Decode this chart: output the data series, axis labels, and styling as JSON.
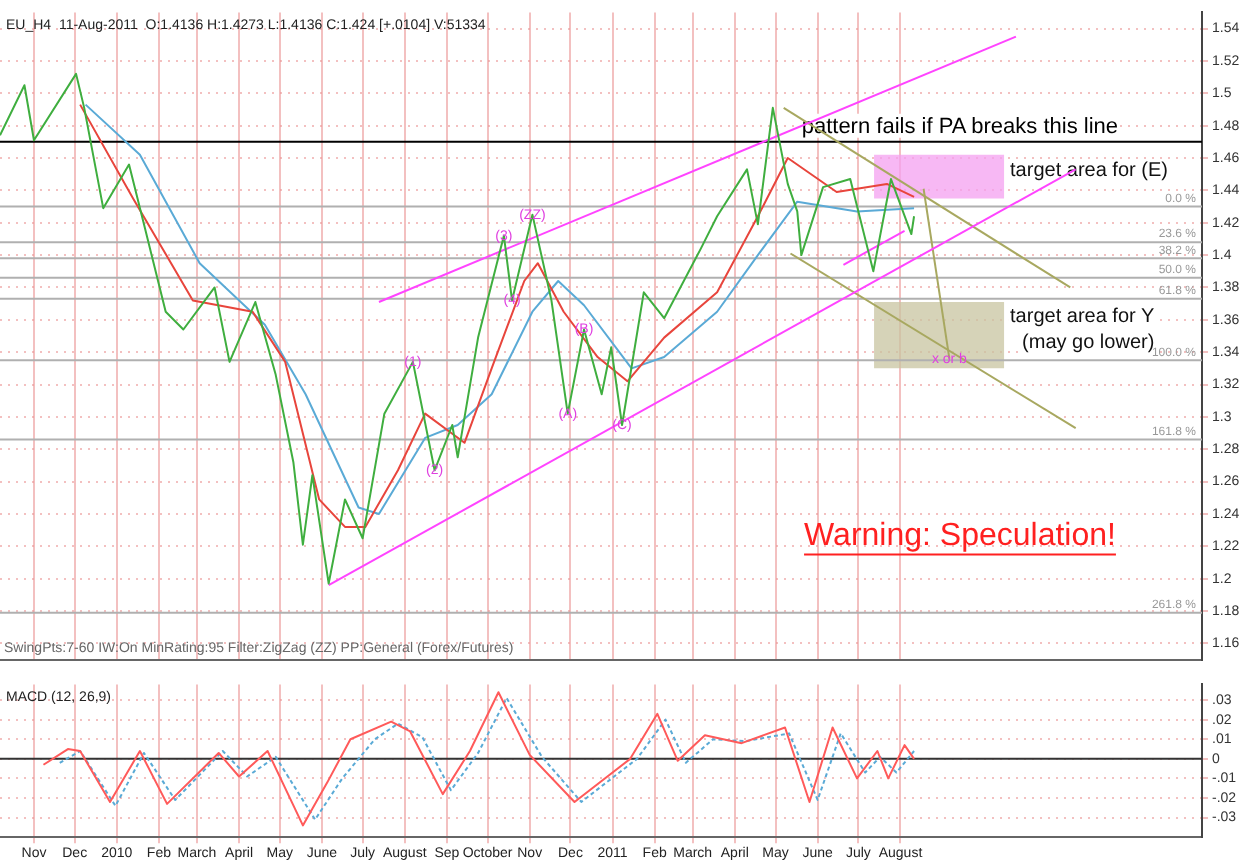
{
  "chart_data": [
    {
      "type": "line",
      "title": "EU_H4  11-Aug-2011  O:1.4136 H:1.4273 L:1.4136 C:1.424 [+.0104] V:51334",
      "xlim": [
        "2009-10-07",
        "2012-03-10"
      ],
      "xticks": [
        {
          "value": "2009-11-01",
          "label": null
        },
        {
          "value": "2009-12-01",
          "label": null
        },
        {
          "value": "2010-01-01",
          "label": null
        },
        {
          "value": "2010-02-01",
          "label": null
        },
        {
          "value": "2010-03-01",
          "label": null
        },
        {
          "value": "2010-04-01",
          "label": null
        },
        {
          "value": "2010-05-01",
          "label": null
        },
        {
          "value": "2010-06-01",
          "label": null
        },
        {
          "value": "2010-07-01",
          "label": null
        },
        {
          "value": "2010-08-01",
          "label": null
        },
        {
          "value": "2010-09-01",
          "label": null
        },
        {
          "value": "2010-10-01",
          "label": null
        },
        {
          "value": "2010-11-01",
          "label": null
        },
        {
          "value": "2010-12-01",
          "label": null
        },
        {
          "value": "2011-01-01",
          "label": null
        },
        {
          "value": "2011-02-01",
          "label": null
        },
        {
          "value": "2011-03-01",
          "label": null
        },
        {
          "value": "2011-04-01",
          "label": null
        },
        {
          "value": "2011-05-01",
          "label": null
        },
        {
          "value": "2011-06-01",
          "label": null
        },
        {
          "value": "2011-07-01",
          "label": null
        },
        {
          "value": "2011-08-01",
          "label": null
        }
      ],
      "ylim": [
        1.15,
        1.55
      ],
      "yticks": [
        1.16,
        1.18,
        1.2,
        1.22,
        1.24,
        1.26,
        1.28,
        1.3,
        1.32,
        1.34,
        1.36,
        1.38,
        1.4,
        1.42,
        1.44,
        1.46,
        1.48,
        1.5,
        1.52,
        1.54
      ],
      "tick_labels": "y",
      "grid": true,
      "legend": false,
      "series": [
        {
          "color": "#3fae3f",
          "x": [
            "2009-10-07",
            "2009-10-25",
            "2009-11-01",
            "2009-12-02",
            "2009-12-08",
            "2009-12-22",
            "2010-01-10",
            "2010-01-21",
            "2010-02-06",
            "2010-02-19",
            "2010-03-14",
            "2010-03-25",
            "2010-04-13",
            "2010-04-28",
            "2010-05-11",
            "2010-05-18",
            "2010-05-25",
            "2010-06-06",
            "2010-06-18",
            "2010-07-01",
            "2010-07-17",
            "2010-08-07",
            "2010-08-23",
            "2010-09-05",
            "2010-09-09",
            "2010-09-24",
            "2010-10-13",
            "2010-10-19",
            "2010-11-03",
            "2010-11-17",
            "2010-11-29",
            "2010-12-11",
            "2010-12-24",
            "2010-12-31",
            "2011-01-08",
            "2011-01-24",
            "2011-02-08",
            "2011-03-07",
            "2011-03-19",
            "2011-04-10",
            "2011-04-18",
            "2011-04-29",
            "2011-05-10",
            "2011-05-17",
            "2011-05-20",
            "2011-06-05",
            "2011-06-25",
            "2011-07-12",
            "2011-07-25",
            "2011-08-09",
            "2011-08-11"
          ],
          "values": [
            1.474,
            1.505,
            1.471,
            1.512,
            1.491,
            1.429,
            1.456,
            1.419,
            1.365,
            1.354,
            1.38,
            1.334,
            1.371,
            1.326,
            1.272,
            1.221,
            1.264,
            1.197,
            1.249,
            1.225,
            1.302,
            1.334,
            1.267,
            1.295,
            1.275,
            1.349,
            1.412,
            1.372,
            1.425,
            1.372,
            1.302,
            1.354,
            1.314,
            1.343,
            1.295,
            1.377,
            1.361,
            1.404,
            1.424,
            1.453,
            1.419,
            1.491,
            1.444,
            1.427,
            1.4,
            1.442,
            1.447,
            1.39,
            1.447,
            1.413,
            1.424
          ]
        },
        {
          "color": "#e8453c",
          "x": [
            "2009-12-05",
            "2010-01-13",
            "2010-02-26",
            "2010-04-11",
            "2010-05-05",
            "2010-05-30",
            "2010-06-18",
            "2010-07-03",
            "2010-07-27",
            "2010-08-16",
            "2010-09-14",
            "2010-10-04",
            "2010-10-28",
            "2010-11-07",
            "2010-11-26",
            "2010-12-21",
            "2011-01-12",
            "2011-02-08",
            "2011-03-19",
            "2011-04-18",
            "2011-05-10",
            "2011-06-15",
            "2011-07-22",
            "2011-08-11"
          ],
          "values": [
            1.493,
            1.435,
            1.372,
            1.365,
            1.334,
            1.249,
            1.232,
            1.232,
            1.267,
            1.302,
            1.284,
            1.33,
            1.384,
            1.395,
            1.365,
            1.337,
            1.322,
            1.349,
            1.377,
            1.424,
            1.46,
            1.439,
            1.444,
            1.436
          ]
        },
        {
          "color": "#5aaad6",
          "x": [
            "2009-12-09",
            "2010-01-18",
            "2010-03-03",
            "2010-04-20",
            "2010-05-20",
            "2010-06-28",
            "2010-07-13",
            "2010-08-16",
            "2010-09-09",
            "2010-10-04",
            "2010-11-03",
            "2010-11-22",
            "2010-12-11",
            "2011-01-15",
            "2011-02-08",
            "2011-03-19",
            "2011-04-18",
            "2011-05-17",
            "2011-06-30",
            "2011-08-11"
          ],
          "values": [
            1.493,
            1.462,
            1.395,
            1.357,
            1.314,
            1.244,
            1.24,
            1.287,
            1.295,
            1.314,
            1.365,
            1.384,
            1.369,
            1.33,
            1.337,
            1.365,
            1.4,
            1.433,
            1.427,
            1.429
          ]
        },
        {
          "color": "#ff44ff",
          "x": [
            "2010-07-13",
            "2011-10-25"
          ],
          "values": [
            1.371,
            1.535
          ]
        },
        {
          "color": "#ff44ff",
          "x": [
            "2010-06-06",
            "2011-12-08"
          ],
          "values": [
            1.196,
            1.453
          ]
        },
        {
          "color": "#ff44ff",
          "x": [
            "2011-06-20",
            "2011-08-04"
          ],
          "values": [
            1.394,
            1.415
          ]
        },
        {
          "color": "#a8a860",
          "x": [
            "2011-05-07",
            "2011-12-04"
          ],
          "values": [
            1.491,
            1.38
          ]
        },
        {
          "color": "#a8a860",
          "x": [
            "2011-05-12",
            "2011-12-08"
          ],
          "values": [
            1.401,
            1.293
          ]
        },
        {
          "color": "#a8a860",
          "x": [
            "2011-08-18",
            "2011-09-06"
          ],
          "values": [
            1.441,
            1.336
          ]
        }
      ],
      "ref_lines": [
        {
          "axis": "y",
          "value": 1.47,
          "label": "pattern fails if PA breaks this line",
          "color": "#000000"
        },
        {
          "axis": "y",
          "value": 1.43,
          "color": "#b0b0b0"
        },
        {
          "axis": "y",
          "value": 1.408,
          "color": "#b0b0b0"
        },
        {
          "axis": "y",
          "value": 1.398,
          "color": "#b0b0b0"
        },
        {
          "axis": "y",
          "value": 1.386,
          "color": "#b0b0b0"
        },
        {
          "axis": "y",
          "value": 1.373,
          "color": "#b0b0b0"
        },
        {
          "axis": "y",
          "value": 1.335,
          "color": "#b0b0b0"
        },
        {
          "axis": "y",
          "value": 1.286,
          "color": "#b0b0b0"
        },
        {
          "axis": "y",
          "value": 1.179,
          "color": "#b0b0b0"
        }
      ],
      "bands": [
        {
          "axis": "y",
          "from": 1.435,
          "to": 1.462,
          "label": "target area for (E)",
          "color": "#f4a0f0"
        },
        {
          "axis": "y",
          "from": 1.33,
          "to": 1.371,
          "label": "target area for Y\n(may go lower)",
          "color": "#c8c4a0"
        }
      ],
      "annotations": [
        "SwingPts:7-60 IW:On MinRating:95 Filter:ZigZag (ZZ) PP:General (Forex/Futures)",
        "Warning: Speculation!",
        {
          "text": "(1)",
          "x": "2010-08-07",
          "y": 1.334
        },
        {
          "text": "(2)",
          "x": "2010-08-23",
          "y": 1.267
        },
        {
          "text": "(3)",
          "x": "2010-10-13",
          "y": 1.412
        },
        {
          "text": "(4)",
          "x": "2010-10-19",
          "y": 1.372
        },
        {
          "text": "(ZZ)",
          "x": "2010-11-03",
          "y": 1.425
        },
        {
          "text": "(A)",
          "x": "2010-11-29",
          "y": 1.302
        },
        {
          "text": "(B)",
          "x": "2010-12-11",
          "y": 1.354
        },
        {
          "text": "(C)",
          "x": "2011-01-08",
          "y": 1.295
        },
        {
          "text": "x or b",
          "x": "2011-09-06",
          "y": 1.336
        },
        {
          "text": "0.0 %",
          "x": "2012-03-10",
          "y": 1.43
        },
        {
          "text": "23.6 %",
          "x": "2012-03-10",
          "y": 1.408
        },
        {
          "text": "38.2 %",
          "x": "2012-03-10",
          "y": 1.398
        },
        {
          "text": "50.0 %",
          "x": "2012-03-10",
          "y": 1.386
        },
        {
          "text": "61.8 %",
          "x": "2012-03-10",
          "y": 1.373
        },
        {
          "text": "100.0 %",
          "x": "2012-03-10",
          "y": 1.335
        },
        {
          "text": "161.8 %",
          "x": "2012-03-10",
          "y": 1.286
        },
        {
          "text": "261.8 %",
          "x": "2012-03-10",
          "y": 1.179
        }
      ]
    },
    {
      "type": "line",
      "title": "MACD (12, 26,9)",
      "xlim": [
        "2009-10-07",
        "2012-03-10"
      ],
      "xticks": [
        {
          "value": "2009-11-01",
          "label": "Nov"
        },
        {
          "value": "2009-12-01",
          "label": "Dec"
        },
        {
          "value": "2010-01-01",
          "label": "2010"
        },
        {
          "value": "2010-02-01",
          "label": "Feb"
        },
        {
          "value": "2010-03-01",
          "label": "March"
        },
        {
          "value": "2010-04-01",
          "label": "April"
        },
        {
          "value": "2010-05-01",
          "label": "May"
        },
        {
          "value": "2010-06-01",
          "label": "June"
        },
        {
          "value": "2010-07-01",
          "label": "July"
        },
        {
          "value": "2010-08-01",
          "label": "August"
        },
        {
          "value": "2010-09-01",
          "label": "Sep"
        },
        {
          "value": "2010-10-01",
          "label": "October"
        },
        {
          "value": "2010-11-01",
          "label": "Nov"
        },
        {
          "value": "2010-12-01",
          "label": "Dec"
        },
        {
          "value": "2011-01-01",
          "label": "2011"
        },
        {
          "value": "2011-02-01",
          "label": "Feb"
        },
        {
          "value": "2011-03-01",
          "label": "March"
        },
        {
          "value": "2011-04-01",
          "label": "April"
        },
        {
          "value": "2011-05-01",
          "label": "May"
        },
        {
          "value": "2011-06-01",
          "label": "June"
        },
        {
          "value": "2011-07-01",
          "label": "July"
        },
        {
          "value": "2011-08-01",
          "label": "August"
        }
      ],
      "ylim": [
        -0.04,
        0.038
      ],
      "yticks": [
        {
          "value": -0.03,
          "label": "-.03"
        },
        {
          "value": -0.02,
          "label": "-.02"
        },
        {
          "value": -0.01,
          "label": "-.01"
        },
        {
          "value": 0,
          "label": "0"
        },
        {
          "value": 0.01,
          "label": ".01"
        },
        {
          "value": 0.02,
          "label": ".02"
        },
        {
          "value": 0.03,
          "label": ".03"
        }
      ],
      "grid": true,
      "legend": false,
      "ref_lines": [
        {
          "axis": "y",
          "value": 0,
          "color": "#333333"
        }
      ],
      "series": [
        {
          "color": "#ff5a5a",
          "line_style": "solid",
          "x": [
            "2009-11-08",
            "2009-11-26",
            "2009-12-05",
            "2009-12-27",
            "2010-01-18",
            "2010-02-07",
            "2010-03-17",
            "2010-04-01",
            "2010-04-22",
            "2010-05-18",
            "2010-06-05",
            "2010-06-22",
            "2010-07-22",
            "2010-08-05",
            "2010-08-29",
            "2010-09-18",
            "2010-10-09",
            "2010-11-01",
            "2010-12-04",
            "2011-01-14",
            "2011-02-03",
            "2011-02-18",
            "2011-03-10",
            "2011-04-06",
            "2011-05-08",
            "2011-05-26",
            "2011-06-12",
            "2011-06-30",
            "2011-07-15",
            "2011-07-23",
            "2011-08-04",
            "2011-08-11"
          ],
          "values": [
            -0.003,
            0.005,
            0.004,
            -0.022,
            0.004,
            -0.023,
            0.003,
            -0.009,
            0.004,
            -0.034,
            -0.012,
            0.01,
            0.019,
            0.014,
            -0.018,
            0.004,
            0.034,
            0.002,
            -0.022,
            0,
            0.023,
            -0.001,
            0.012,
            0.008,
            0.016,
            -0.022,
            0.016,
            -0.01,
            0.004,
            -0.01,
            0.007,
            0
          ]
        },
        {
          "color": "#5aaad6",
          "line_style": "dotted",
          "x": [
            "2009-11-20",
            "2009-12-05",
            "2009-12-31",
            "2010-01-21",
            "2010-02-13",
            "2010-03-20",
            "2010-04-07",
            "2010-04-28",
            "2010-05-27",
            "2010-06-16",
            "2010-07-10",
            "2010-07-27",
            "2010-08-14",
            "2010-09-04",
            "2010-09-24",
            "2010-10-15",
            "2010-11-10",
            "2010-12-09",
            "2011-01-19",
            "2011-02-09",
            "2011-02-24",
            "2011-03-16",
            "2011-04-09",
            "2011-05-11",
            "2011-06-01",
            "2011-06-18",
            "2011-07-06",
            "2011-07-17",
            "2011-07-29",
            "2011-08-11"
          ],
          "values": [
            -0.002,
            0.004,
            -0.024,
            0.003,
            -0.021,
            0.004,
            -0.009,
            0.001,
            -0.031,
            -0.01,
            0.01,
            0.018,
            0.011,
            -0.016,
            0.003,
            0.031,
            0.001,
            -0.022,
            0,
            0.02,
            -0.002,
            0.01,
            0.009,
            0.013,
            -0.021,
            0.013,
            -0.007,
            0.001,
            -0.007,
            0.004
          ]
        }
      ]
    }
  ]
}
